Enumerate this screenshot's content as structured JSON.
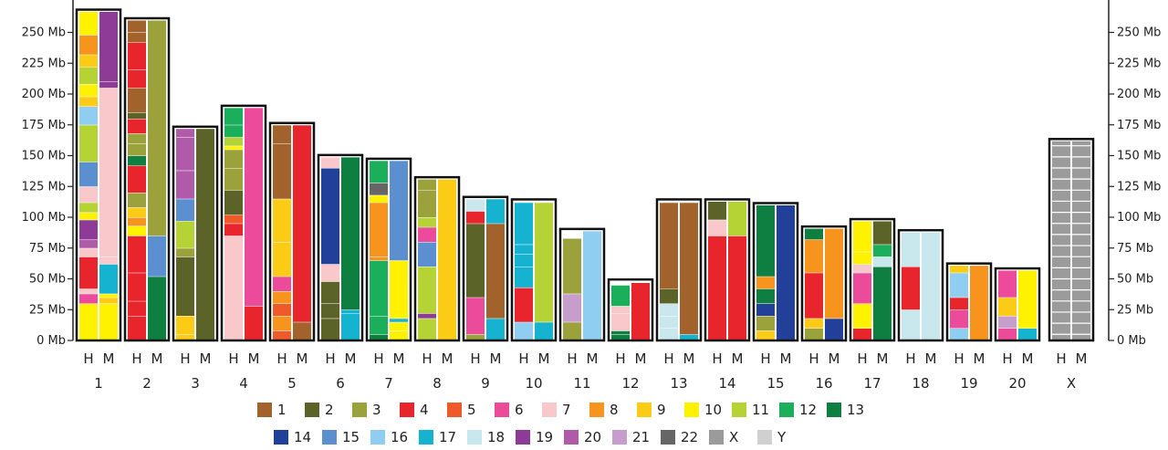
{
  "axis": {
    "unit": "Mb",
    "ticks": [
      0,
      25,
      50,
      75,
      100,
      125,
      150,
      175,
      200,
      225,
      250
    ],
    "max": 270
  },
  "track_labels": [
    "H",
    "M"
  ],
  "palette": {
    "1": "#A1622B",
    "2": "#5C6329",
    "3": "#9BA13B",
    "4": "#E8242C",
    "5": "#F05A2B",
    "6": "#EC4A9A",
    "7": "#F9C8CB",
    "8": "#F7941D",
    "9": "#FCCB16",
    "10": "#FFF200",
    "11": "#B5D334",
    "12": "#1BAE5B",
    "13": "#0F7F41",
    "14": "#22409A",
    "15": "#5B8FCF",
    "16": "#8FCEF1",
    "17": "#16B3D0",
    "18": "#C8E8EE",
    "19": "#8E3B97",
    "20": "#B05BAA",
    "21": "#C79DCC",
    "22": "#666666",
    "X": "#9B9B9B",
    "Y": "#D0D0D0"
  },
  "legend": {
    "row1": [
      "1",
      "2",
      "3",
      "4",
      "5",
      "6",
      "7",
      "8",
      "9",
      "10",
      "11",
      "12",
      "13"
    ],
    "row2": [
      "14",
      "15",
      "16",
      "17",
      "18",
      "19",
      "20",
      "21",
      "22",
      "X",
      "Y"
    ]
  },
  "chromosomes": [
    {
      "label": "1",
      "h_len": 267,
      "H": [
        [
          0,
          30,
          "10"
        ],
        [
          30,
          38,
          "6"
        ],
        [
          38,
          42,
          "7"
        ],
        [
          42,
          68,
          "4"
        ],
        [
          68,
          75,
          "7"
        ],
        [
          75,
          82,
          "20"
        ],
        [
          82,
          98,
          "19"
        ],
        [
          98,
          104,
          "10"
        ],
        [
          104,
          112,
          "11"
        ],
        [
          112,
          125,
          "7"
        ],
        [
          125,
          145,
          "15"
        ],
        [
          145,
          175,
          "11"
        ],
        [
          175,
          190,
          "16"
        ],
        [
          190,
          198,
          "9"
        ],
        [
          198,
          208,
          "10"
        ],
        [
          208,
          222,
          "11"
        ],
        [
          222,
          232,
          "9"
        ],
        [
          232,
          248,
          "8"
        ],
        [
          248,
          267,
          "10"
        ]
      ],
      "M": [
        [
          0,
          30,
          "10"
        ],
        [
          30,
          35,
          "9"
        ],
        [
          35,
          38,
          "10"
        ],
        [
          38,
          62,
          "17"
        ],
        [
          62,
          68,
          "7"
        ],
        [
          68,
          205,
          "7"
        ],
        [
          205,
          210,
          "19"
        ],
        [
          210,
          267,
          "19"
        ]
      ]
    },
    {
      "label": "2",
      "h_len": 260,
      "H": [
        [
          0,
          20,
          "4"
        ],
        [
          20,
          32,
          "4"
        ],
        [
          32,
          55,
          "4"
        ],
        [
          55,
          85,
          "4"
        ],
        [
          85,
          93,
          "10"
        ],
        [
          93,
          100,
          "8"
        ],
        [
          100,
          108,
          "9"
        ],
        [
          108,
          120,
          "3"
        ],
        [
          120,
          142,
          "4"
        ],
        [
          142,
          150,
          "13"
        ],
        [
          150,
          160,
          "3"
        ],
        [
          160,
          168,
          "3"
        ],
        [
          168,
          180,
          "4"
        ],
        [
          180,
          185,
          "2"
        ],
        [
          185,
          205,
          "1"
        ],
        [
          205,
          220,
          "4"
        ],
        [
          220,
          242,
          "4"
        ],
        [
          242,
          250,
          "1"
        ],
        [
          250,
          260,
          "1"
        ]
      ],
      "M": [
        [
          0,
          52,
          "13"
        ],
        [
          52,
          85,
          "15"
        ],
        [
          85,
          260,
          "3"
        ]
      ]
    },
    {
      "label": "3",
      "h_len": 172,
      "H": [
        [
          0,
          5,
          "9"
        ],
        [
          5,
          20,
          "9"
        ],
        [
          20,
          68,
          "2"
        ],
        [
          68,
          75,
          "3"
        ],
        [
          75,
          97,
          "11"
        ],
        [
          97,
          115,
          "15"
        ],
        [
          115,
          138,
          "20"
        ],
        [
          138,
          165,
          "20"
        ],
        [
          165,
          172,
          "20"
        ]
      ],
      "M": [
        [
          0,
          172,
          "2"
        ]
      ]
    },
    {
      "label": "4",
      "h_len": 189,
      "H": [
        [
          0,
          85,
          "7"
        ],
        [
          85,
          95,
          "4"
        ],
        [
          95,
          102,
          "5"
        ],
        [
          102,
          122,
          "2"
        ],
        [
          122,
          140,
          "3"
        ],
        [
          140,
          155,
          "3"
        ],
        [
          155,
          158,
          "10"
        ],
        [
          158,
          165,
          "11"
        ],
        [
          165,
          175,
          "12"
        ],
        [
          175,
          189,
          "12"
        ]
      ],
      "M": [
        [
          0,
          28,
          "4"
        ],
        [
          28,
          189,
          "6"
        ]
      ]
    },
    {
      "label": "5",
      "h_len": 175,
      "H": [
        [
          0,
          8,
          "5"
        ],
        [
          8,
          20,
          "8"
        ],
        [
          20,
          30,
          "5"
        ],
        [
          30,
          40,
          "8"
        ],
        [
          40,
          52,
          "6"
        ],
        [
          52,
          80,
          "9"
        ],
        [
          80,
          115,
          "9"
        ],
        [
          115,
          160,
          "1"
        ],
        [
          160,
          175,
          "1"
        ]
      ],
      "M": [
        [
          0,
          15,
          "1"
        ],
        [
          15,
          175,
          "4"
        ]
      ]
    },
    {
      "label": "6",
      "h_len": 149,
      "H": [
        [
          0,
          18,
          "2"
        ],
        [
          18,
          30,
          "2"
        ],
        [
          30,
          48,
          "2"
        ],
        [
          48,
          62,
          "7"
        ],
        [
          62,
          140,
          "14"
        ],
        [
          140,
          149,
          "7"
        ]
      ],
      "M": [
        [
          0,
          22,
          "17"
        ],
        [
          22,
          25,
          "17"
        ],
        [
          25,
          149,
          "13"
        ]
      ]
    },
    {
      "label": "7",
      "h_len": 146,
      "H": [
        [
          0,
          5,
          "13"
        ],
        [
          5,
          20,
          "12"
        ],
        [
          20,
          65,
          "12"
        ],
        [
          65,
          68,
          "8"
        ],
        [
          68,
          112,
          "8"
        ],
        [
          112,
          118,
          "10"
        ],
        [
          118,
          128,
          "22"
        ],
        [
          128,
          146,
          "12"
        ]
      ],
      "M": [
        [
          0,
          8,
          "10"
        ],
        [
          8,
          15,
          "10"
        ],
        [
          15,
          18,
          "17"
        ],
        [
          18,
          65,
          "10"
        ],
        [
          65,
          146,
          "15"
        ]
      ]
    },
    {
      "label": "8",
      "h_len": 131,
      "H": [
        [
          0,
          18,
          "11"
        ],
        [
          18,
          22,
          "19"
        ],
        [
          22,
          60,
          "11"
        ],
        [
          60,
          80,
          "15"
        ],
        [
          80,
          92,
          "6"
        ],
        [
          92,
          100,
          "11"
        ],
        [
          100,
          122,
          "3"
        ],
        [
          122,
          131,
          "3"
        ]
      ],
      "M": [
        [
          0,
          131,
          "9"
        ]
      ]
    },
    {
      "label": "9",
      "h_len": 115,
      "H": [
        [
          0,
          5,
          "3"
        ],
        [
          5,
          35,
          "6"
        ],
        [
          35,
          95,
          "2"
        ],
        [
          95,
          105,
          "4"
        ],
        [
          105,
          115,
          "18"
        ]
      ],
      "M": [
        [
          0,
          18,
          "17"
        ],
        [
          18,
          95,
          "1"
        ],
        [
          95,
          115,
          "17"
        ]
      ]
    },
    {
      "label": "10",
      "h_len": 113,
      "H": [
        [
          0,
          15,
          "16"
        ],
        [
          15,
          43,
          "4"
        ],
        [
          43,
          60,
          "17"
        ],
        [
          60,
          70,
          "17"
        ],
        [
          70,
          78,
          "17"
        ],
        [
          78,
          112,
          "17"
        ]
      ],
      "M": [
        [
          0,
          15,
          "17"
        ],
        [
          15,
          112,
          "11"
        ]
      ]
    },
    {
      "label": "11",
      "h_len": 89,
      "H": [
        [
          0,
          15,
          "3"
        ],
        [
          15,
          38,
          "21"
        ],
        [
          38,
          83,
          "3"
        ]
      ],
      "M": [
        [
          0,
          89,
          "16"
        ]
      ]
    },
    {
      "label": "12",
      "h_len": 48,
      "H": [
        [
          0,
          5,
          "13"
        ],
        [
          5,
          8,
          "13"
        ],
        [
          8,
          22,
          "7"
        ],
        [
          22,
          28,
          "7"
        ],
        [
          28,
          45,
          "12"
        ]
      ],
      "M": [
        [
          0,
          47,
          "4"
        ]
      ]
    },
    {
      "label": "13",
      "h_len": 113,
      "H": [
        [
          0,
          10,
          "18"
        ],
        [
          10,
          20,
          "18"
        ],
        [
          20,
          30,
          "18"
        ],
        [
          30,
          42,
          "2"
        ],
        [
          42,
          112,
          "1"
        ]
      ],
      "M": [
        [
          0,
          5,
          "17"
        ],
        [
          5,
          112,
          "1"
        ]
      ]
    },
    {
      "label": "14",
      "h_len": 113,
      "H": [
        [
          0,
          85,
          "4"
        ],
        [
          85,
          98,
          "7"
        ],
        [
          98,
          113,
          "2"
        ]
      ],
      "M": [
        [
          0,
          85,
          "4"
        ],
        [
          85,
          113,
          "11"
        ]
      ]
    },
    {
      "label": "15",
      "h_len": 110,
      "H": [
        [
          0,
          8,
          "9"
        ],
        [
          8,
          20,
          "3"
        ],
        [
          20,
          30,
          "14"
        ],
        [
          30,
          42,
          "13"
        ],
        [
          42,
          52,
          "8"
        ],
        [
          52,
          110,
          "13"
        ]
      ],
      "M": [
        [
          0,
          110,
          "14"
        ]
      ]
    },
    {
      "label": "16",
      "h_len": 91,
      "H": [
        [
          0,
          10,
          "3"
        ],
        [
          10,
          18,
          "9"
        ],
        [
          18,
          55,
          "4"
        ],
        [
          55,
          82,
          "8"
        ],
        [
          82,
          91,
          "13"
        ]
      ],
      "M": [
        [
          0,
          18,
          "14"
        ],
        [
          18,
          91,
          "8"
        ]
      ]
    },
    {
      "label": "17",
      "h_len": 97,
      "H": [
        [
          0,
          10,
          "4"
        ],
        [
          10,
          30,
          "10"
        ],
        [
          30,
          55,
          "6"
        ],
        [
          55,
          62,
          "7"
        ],
        [
          62,
          72,
          "10"
        ],
        [
          72,
          97,
          "10"
        ]
      ],
      "M": [
        [
          0,
          60,
          "13"
        ],
        [
          60,
          68,
          "18"
        ],
        [
          68,
          78,
          "12"
        ],
        [
          78,
          97,
          "2"
        ]
      ]
    },
    {
      "label": "18",
      "h_len": 88,
      "H": [
        [
          0,
          25,
          "18"
        ],
        [
          25,
          60,
          "4"
        ],
        [
          60,
          88,
          "18"
        ]
      ],
      "M": [
        [
          0,
          88,
          "18"
        ]
      ]
    },
    {
      "label": "19",
      "h_len": 61,
      "H": [
        [
          0,
          10,
          "16"
        ],
        [
          10,
          25,
          "6"
        ],
        [
          25,
          35,
          "4"
        ],
        [
          35,
          55,
          "16"
        ],
        [
          55,
          61,
          "9"
        ]
      ],
      "M": [
        [
          0,
          61,
          "8"
        ]
      ]
    },
    {
      "label": "20",
      "h_len": 57,
      "H": [
        [
          0,
          10,
          "6"
        ],
        [
          10,
          20,
          "21"
        ],
        [
          20,
          35,
          "9"
        ],
        [
          35,
          57,
          "6"
        ]
      ],
      "M": [
        [
          0,
          10,
          "17"
        ],
        [
          10,
          57,
          "10"
        ]
      ]
    },
    {
      "label": "X",
      "h_len": 162,
      "H": [
        [
          0,
          162,
          "X"
        ]
      ],
      "M": [
        [
          0,
          162,
          "X"
        ]
      ]
    }
  ]
}
